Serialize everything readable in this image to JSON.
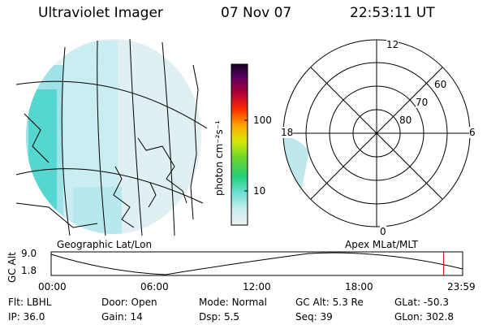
{
  "header": {
    "instrument": "Ultraviolet Imager",
    "date": "07 Nov 07",
    "time": "22:53:11 UT"
  },
  "colorbar": {
    "label": "photon cm⁻²s⁻¹",
    "ticks": [
      "100",
      "10"
    ]
  },
  "polar_plot": {
    "mlt_labels": {
      "top": "12",
      "left": "18",
      "right": "6",
      "bottom": "0"
    },
    "lat_labels": [
      "60",
      "70",
      "80"
    ]
  },
  "panel_labels": {
    "left": "Geographic Lat/Lon",
    "right": "Apex MLat/MLT"
  },
  "altitude_plot": {
    "ylabel": "GC Alt",
    "y_ticks": [
      "9.0",
      "1.8"
    ],
    "x_ticks": [
      "00:00",
      "06:00",
      "12:00",
      "18:00",
      "23:59"
    ],
    "current_time_marker_hour": 22.89
  },
  "footer": {
    "row1": [
      {
        "label": "Flt:",
        "value": "LBHL"
      },
      {
        "label": "Door:",
        "value": "Open"
      },
      {
        "label": "Mode:",
        "value": "Normal"
      },
      {
        "label": "GC Alt:",
        "value": "5.3 Re"
      },
      {
        "label": "GLat:",
        "value": "-50.3"
      }
    ],
    "row2": [
      {
        "label": "IP:",
        "value": "36.0"
      },
      {
        "label": "Gain:",
        "value": "14"
      },
      {
        "label": "Dsp:",
        "value": "5.5"
      },
      {
        "label": "Seq:",
        "value": "39"
      },
      {
        "label": "GLon:",
        "value": "302.8"
      }
    ]
  }
}
